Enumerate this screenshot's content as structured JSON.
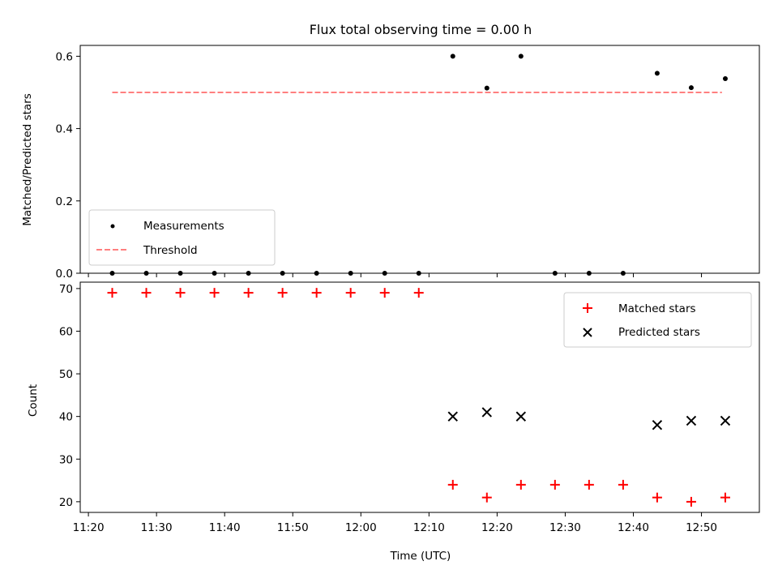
{
  "figure": {
    "title": "Flux total observing time = 0.00 h",
    "xlabel": "Time (UTC)",
    "x_ticks": [
      "11:20",
      "11:30",
      "11:40",
      "11:50",
      "12:00",
      "12:10",
      "12:20",
      "12:30",
      "12:40",
      "12:50"
    ],
    "x_tick_minutes": [
      680,
      690,
      700,
      710,
      720,
      730,
      740,
      750,
      760,
      770
    ],
    "x_range": [
      678.8,
      778.5
    ]
  },
  "chart_data": [
    {
      "type": "scatter",
      "ylabel": "Matched/Predicted stars",
      "ylim": [
        0,
        0.63
      ],
      "y_ticks": [
        0.0,
        0.2,
        0.4,
        0.6
      ],
      "y_tick_labels": [
        "0.0",
        "0.2",
        "0.4",
        "0.6"
      ],
      "legend_position": "lower-left",
      "series": [
        {
          "name": "Measurements",
          "kind": "points",
          "color": "#000000",
          "x": [
            683.5,
            688.5,
            693.5,
            698.5,
            703.5,
            708.5,
            713.5,
            718.5,
            723.5,
            728.5,
            733.5,
            738.5,
            743.5,
            748.5,
            753.5,
            758.5,
            763.5,
            768.5,
            773.5
          ],
          "y": [
            0.0,
            0.0,
            0.0,
            0.0,
            0.0,
            0.0,
            0.0,
            0.0,
            0.0,
            0.0,
            0.6,
            0.512,
            0.6,
            0.0,
            0.0,
            0.0,
            0.553,
            0.513,
            0.538
          ]
        },
        {
          "name": "Threshold",
          "kind": "dashed-line",
          "color": "#ff7f7f",
          "x": [
            683.5,
            773.0
          ],
          "y": [
            0.5,
            0.5
          ]
        }
      ]
    },
    {
      "type": "scatter",
      "ylabel": "Count",
      "ylim": [
        17.5,
        71.5
      ],
      "y_ticks": [
        20,
        30,
        40,
        50,
        60,
        70
      ],
      "y_tick_labels": [
        "20",
        "30",
        "40",
        "50",
        "60",
        "70"
      ],
      "legend_position": "top-right",
      "series": [
        {
          "name": "Matched stars",
          "kind": "plus",
          "color": "#ff0000",
          "x": [
            683.5,
            688.5,
            693.5,
            698.5,
            703.5,
            708.5,
            713.5,
            718.5,
            723.5,
            728.5,
            733.5,
            738.5,
            743.5,
            748.5,
            753.5,
            758.5,
            763.5,
            768.5,
            773.5
          ],
          "y": [
            69,
            69,
            69,
            69,
            69,
            69,
            69,
            69,
            69,
            69,
            24,
            21,
            24,
            24,
            24,
            24,
            21,
            20,
            21
          ]
        },
        {
          "name": "Predicted stars",
          "kind": "cross",
          "color": "#000000",
          "x": [
            733.5,
            738.5,
            743.5,
            763.5,
            768.5,
            773.5
          ],
          "y": [
            40,
            41,
            40,
            38,
            39,
            39
          ]
        }
      ]
    }
  ]
}
